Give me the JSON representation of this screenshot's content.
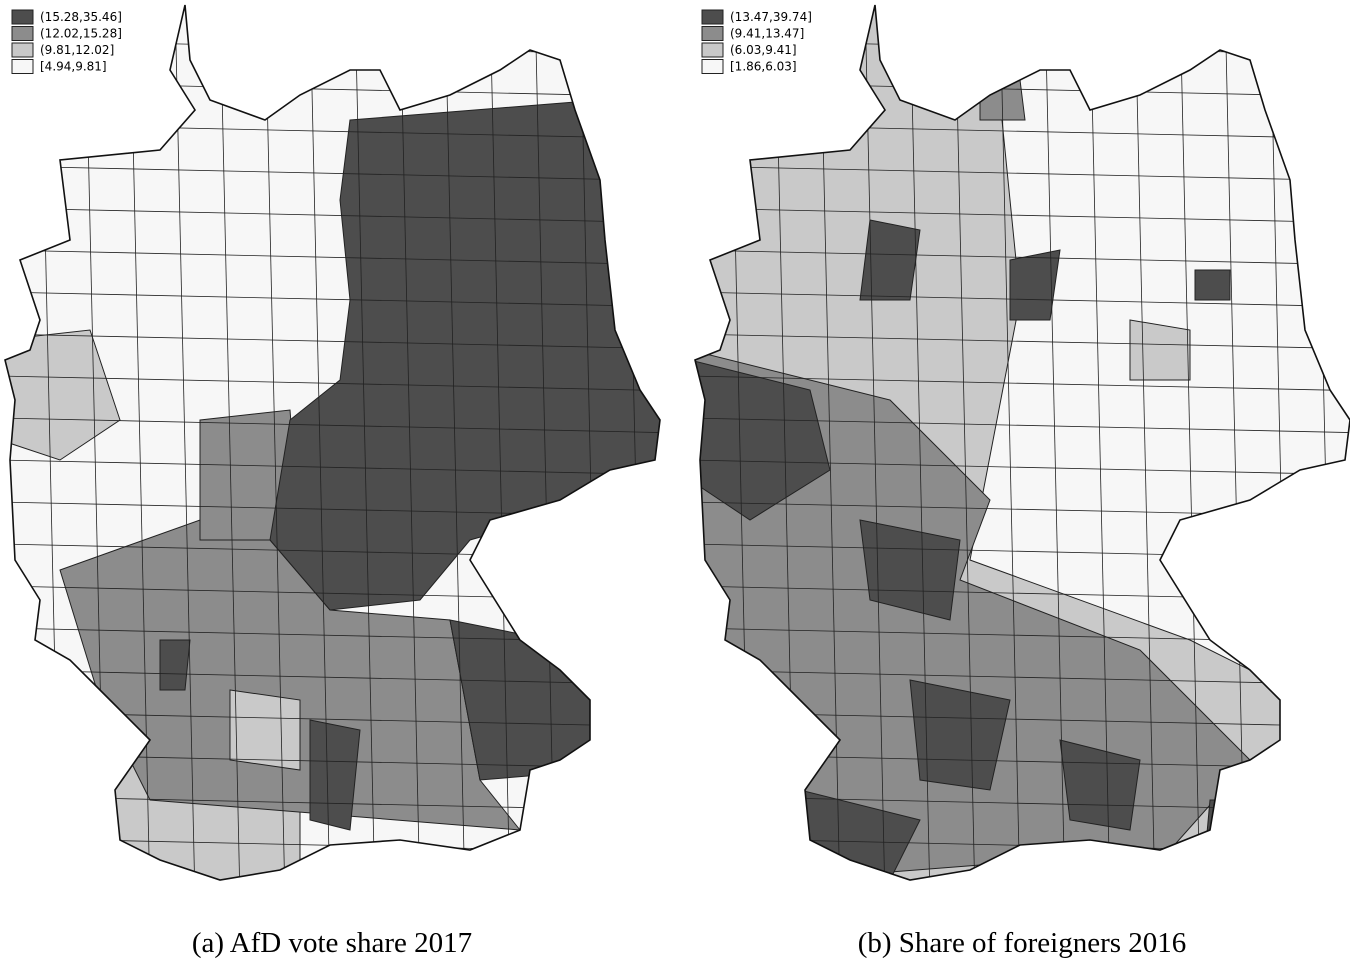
{
  "maps": [
    {
      "caption": "(a) AfD vote share 2017",
      "legend": [
        {
          "label": "(15.28,35.46]",
          "color": "#4d4d4d"
        },
        {
          "label": "(12.02,15.28]",
          "color": "#8c8c8c"
        },
        {
          "label": "(9.81,12.02]",
          "color": "#c9c9c9"
        },
        {
          "label": "[4.94,9.81]",
          "color": "#f7f7f7"
        }
      ]
    },
    {
      "caption": "(b) Share of foreigners 2016",
      "legend": [
        {
          "label": "(13.47,39.74]",
          "color": "#4d4d4d"
        },
        {
          "label": "(9.41,13.47]",
          "color": "#8c8c8c"
        },
        {
          "label": "(6.03,9.41]",
          "color": "#c9c9c9"
        },
        {
          "label": "[1.86,6.03]",
          "color": "#f7f7f7"
        }
      ]
    }
  ]
}
